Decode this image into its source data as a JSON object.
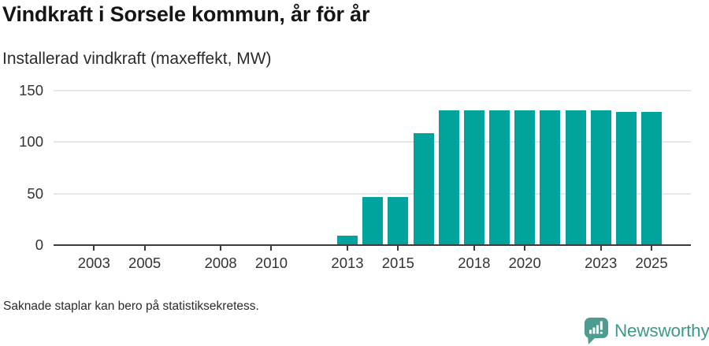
{
  "chart_data": {
    "type": "bar",
    "title": "Vindkraft i Sorsele kommun, år för år",
    "subtitle": "Installerad vindkraft (maxeffekt, MW)",
    "note": "Saknade staplar kan bero på statistiksekretess.",
    "categories": [
      2002,
      2003,
      2004,
      2005,
      2006,
      2007,
      2008,
      2009,
      2010,
      2011,
      2012,
      2013,
      2014,
      2015,
      2016,
      2017,
      2018,
      2019,
      2020,
      2021,
      2022,
      2023,
      2024,
      2025
    ],
    "values": [
      null,
      null,
      null,
      null,
      null,
      null,
      null,
      null,
      null,
      null,
      null,
      9,
      47,
      47,
      109,
      131,
      131,
      131,
      131,
      131,
      131,
      131,
      129,
      129
    ],
    "x_ticks": [
      2003,
      2005,
      2008,
      2010,
      2013,
      2015,
      2018,
      2020,
      2023,
      2025
    ],
    "y_ticks": [
      0,
      50,
      100,
      150
    ],
    "ylim": [
      0,
      150
    ],
    "grid": true,
    "legend": "none",
    "bar_color": "#00A49C"
  },
  "footer": {
    "logo_text": "Newsworthy",
    "logo_icon": "speech-bubble-bar-chart-icon",
    "logo_icon_color": "#4C9D8F",
    "logo_text_color": "#3E988B"
  }
}
